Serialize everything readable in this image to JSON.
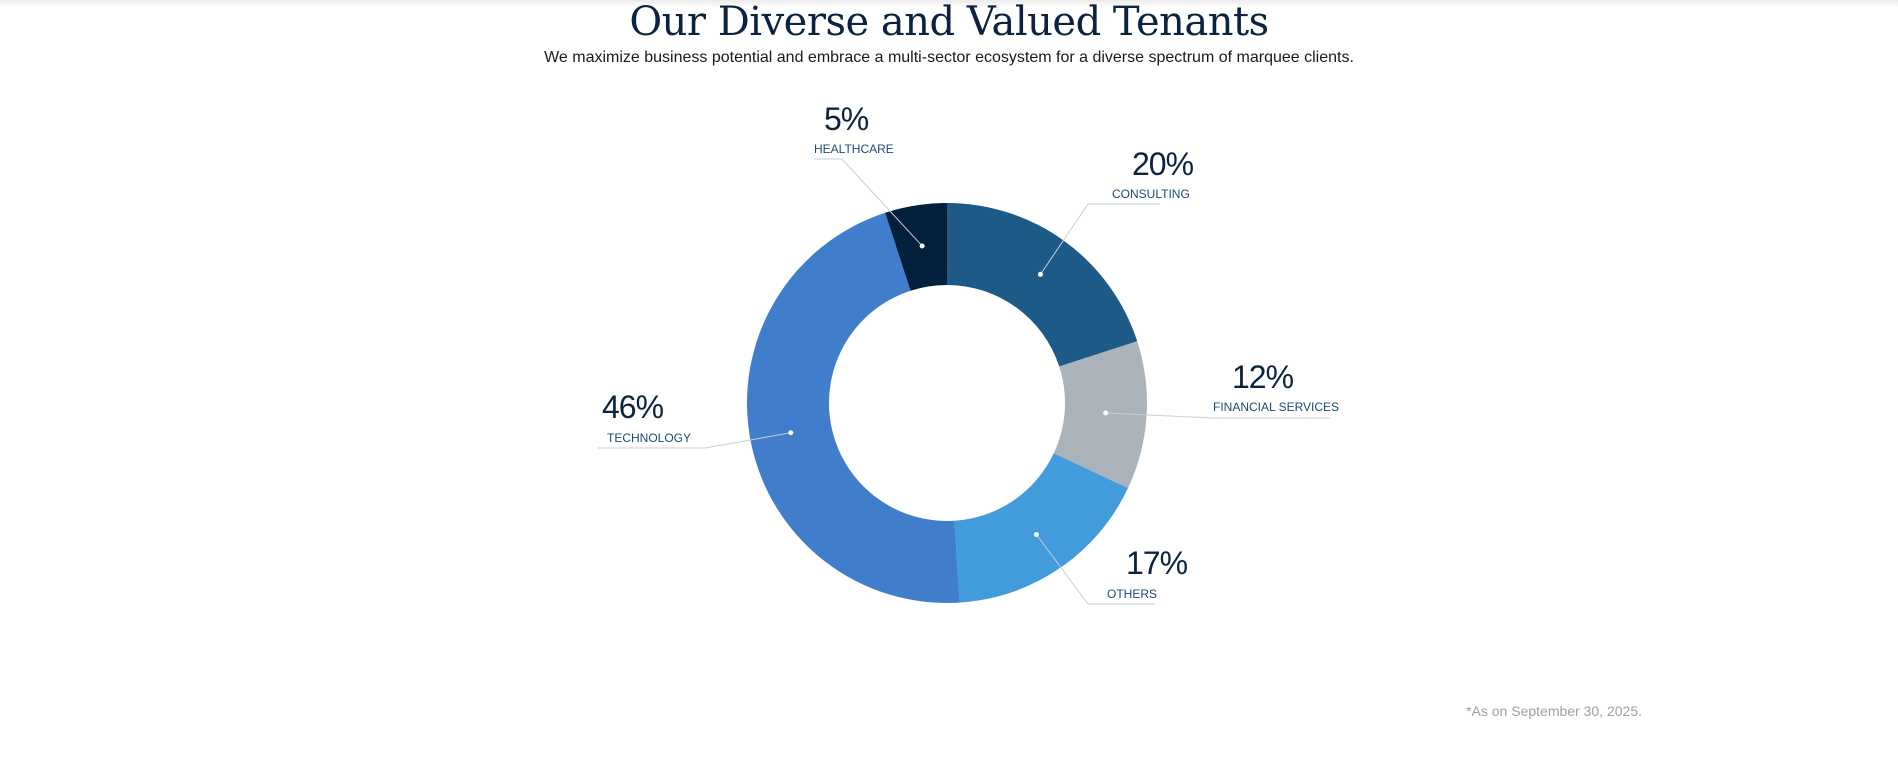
{
  "header": {
    "title": "Our Diverse and Valued Tenants",
    "subtitle": "We maximize business potential and embrace a multi-sector ecosystem for a diverse spectrum of marquee clients."
  },
  "chart_data": {
    "type": "pie",
    "variant": "donut",
    "series": [
      {
        "name": "CONSULTING",
        "value": 20,
        "label": "20%",
        "color": "#1e5a87"
      },
      {
        "name": "FINANCIAL SERVICES",
        "value": 12,
        "label": "12%",
        "color": "#abb3ba"
      },
      {
        "name": "OTHERS",
        "value": 17,
        "label": "17%",
        "color": "#429bdb"
      },
      {
        "name": "TECHNOLOGY",
        "value": 46,
        "label": "46%",
        "color": "#407ecb"
      },
      {
        "name": "HEALTHCARE",
        "value": 5,
        "label": "5%",
        "color": "#021f3c"
      }
    ]
  },
  "footnote": "*As on September 30, 2025."
}
